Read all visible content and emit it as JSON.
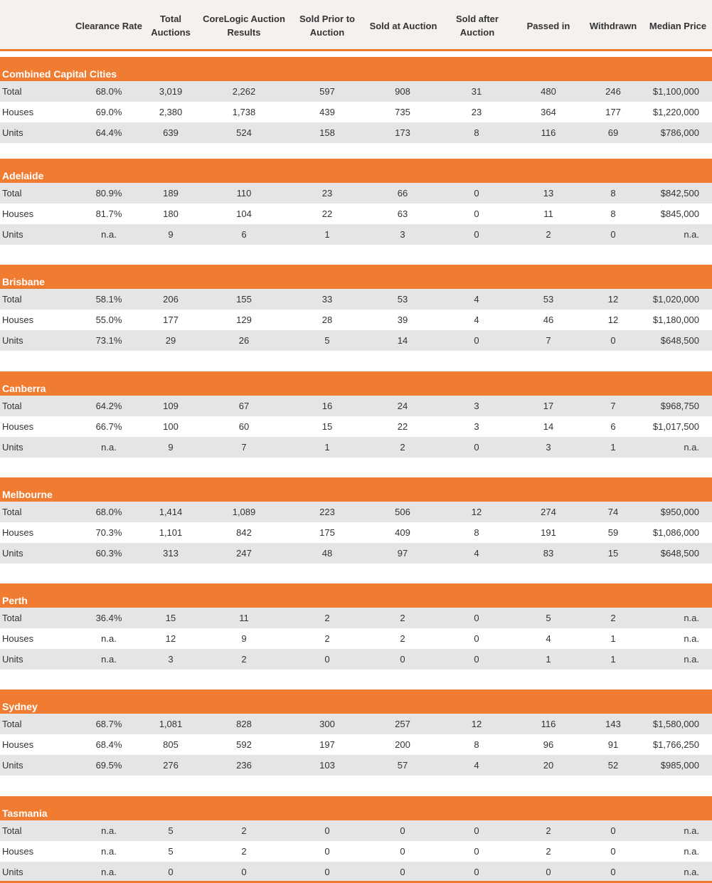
{
  "columns": [
    "Clearance Rate",
    "Total Auctions",
    "CoreLogic Auction Results",
    "Sold Prior to Auction",
    "Sold at Auction",
    "Sold after Auction",
    "Passed in",
    "Withdrawn",
    "Median Price"
  ],
  "sections": [
    {
      "name": "Combined Capital Cities",
      "rows": [
        [
          "Total",
          "68.0%",
          "3,019",
          "2,262",
          "597",
          "908",
          "31",
          "480",
          "246",
          "$1,100,000"
        ],
        [
          "Houses",
          "69.0%",
          "2,380",
          "1,738",
          "439",
          "735",
          "23",
          "364",
          "177",
          "$1,220,000"
        ],
        [
          "Units",
          "64.4%",
          "639",
          "524",
          "158",
          "173",
          "8",
          "116",
          "69",
          "$786,000"
        ]
      ]
    },
    {
      "name": "Adelaide",
      "rows": [
        [
          "Total",
          "80.9%",
          "189",
          "110",
          "23",
          "66",
          "0",
          "13",
          "8",
          "$842,500"
        ],
        [
          "Houses",
          "81.7%",
          "180",
          "104",
          "22",
          "63",
          "0",
          "11",
          "8",
          "$845,000"
        ],
        [
          "Units",
          "n.a.",
          "9",
          "6",
          "1",
          "3",
          "0",
          "2",
          "0",
          "n.a."
        ]
      ]
    },
    {
      "name": "Brisbane",
      "rows": [
        [
          "Total",
          "58.1%",
          "206",
          "155",
          "33",
          "53",
          "4",
          "53",
          "12",
          "$1,020,000"
        ],
        [
          "Houses",
          "55.0%",
          "177",
          "129",
          "28",
          "39",
          "4",
          "46",
          "12",
          "$1,180,000"
        ],
        [
          "Units",
          "73.1%",
          "29",
          "26",
          "5",
          "14",
          "0",
          "7",
          "0",
          "$648,500"
        ]
      ]
    },
    {
      "name": "Canberra",
      "rows": [
        [
          "Total",
          "64.2%",
          "109",
          "67",
          "16",
          "24",
          "3",
          "17",
          "7",
          "$968,750"
        ],
        [
          "Houses",
          "66.7%",
          "100",
          "60",
          "15",
          "22",
          "3",
          "14",
          "6",
          "$1,017,500"
        ],
        [
          "Units",
          "n.a.",
          "9",
          "7",
          "1",
          "2",
          "0",
          "3",
          "1",
          "n.a."
        ]
      ]
    },
    {
      "name": "Melbourne",
      "rows": [
        [
          "Total",
          "68.0%",
          "1,414",
          "1,089",
          "223",
          "506",
          "12",
          "274",
          "74",
          "$950,000"
        ],
        [
          "Houses",
          "70.3%",
          "1,101",
          "842",
          "175",
          "409",
          "8",
          "191",
          "59",
          "$1,086,000"
        ],
        [
          "Units",
          "60.3%",
          "313",
          "247",
          "48",
          "97",
          "4",
          "83",
          "15",
          "$648,500"
        ]
      ]
    },
    {
      "name": "Perth",
      "rows": [
        [
          "Total",
          "36.4%",
          "15",
          "11",
          "2",
          "2",
          "0",
          "5",
          "2",
          "n.a."
        ],
        [
          "Houses",
          "n.a.",
          "12",
          "9",
          "2",
          "2",
          "0",
          "4",
          "1",
          "n.a."
        ],
        [
          "Units",
          "n.a.",
          "3",
          "2",
          "0",
          "0",
          "0",
          "1",
          "1",
          "n.a."
        ]
      ]
    },
    {
      "name": "Sydney",
      "rows": [
        [
          "Total",
          "68.7%",
          "1,081",
          "828",
          "300",
          "257",
          "12",
          "116",
          "143",
          "$1,580,000"
        ],
        [
          "Houses",
          "68.4%",
          "805",
          "592",
          "197",
          "200",
          "8",
          "96",
          "91",
          "$1,766,250"
        ],
        [
          "Units",
          "69.5%",
          "276",
          "236",
          "103",
          "57",
          "4",
          "20",
          "52",
          "$985,000"
        ]
      ]
    },
    {
      "name": "Tasmania",
      "rows": [
        [
          "Total",
          "n.a.",
          "5",
          "2",
          "0",
          "0",
          "0",
          "2",
          "0",
          "n.a."
        ],
        [
          "Houses",
          "n.a.",
          "5",
          "2",
          "0",
          "0",
          "0",
          "2",
          "0",
          "n.a."
        ],
        [
          "Units",
          "n.a.",
          "0",
          "0",
          "0",
          "0",
          "0",
          "0",
          "0",
          "n.a."
        ]
      ]
    }
  ],
  "colors": {
    "accent": "#f07c32",
    "header_bg": "#f5f1ee",
    "row_shade": "#e5e5e5"
  }
}
